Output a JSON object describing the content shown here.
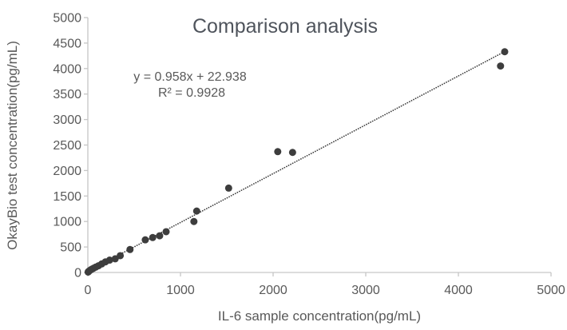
{
  "chart_data": {
    "type": "scatter",
    "title": "Comparison analysis",
    "xlabel": "IL-6 sample concentration(pg/mL)",
    "ylabel": "OkayBio test concentration(pg/mL)",
    "xlim": [
      0,
      5000
    ],
    "ylim": [
      0,
      5000
    ],
    "x_ticks": [
      0,
      1000,
      2000,
      3000,
      4000,
      5000
    ],
    "y_ticks": [
      0,
      500,
      1000,
      1500,
      2000,
      2500,
      3000,
      3500,
      4000,
      4500,
      5000
    ],
    "grid": false,
    "legend": "none",
    "points": [
      [
        3,
        8
      ],
      [
        8,
        18
      ],
      [
        15,
        30
      ],
      [
        25,
        45
      ],
      [
        40,
        62
      ],
      [
        60,
        82
      ],
      [
        85,
        105
      ],
      [
        115,
        132
      ],
      [
        150,
        168
      ],
      [
        190,
        208
      ],
      [
        235,
        242
      ],
      [
        295,
        268
      ],
      [
        350,
        330
      ],
      [
        455,
        450
      ],
      [
        620,
        640
      ],
      [
        700,
        685
      ],
      [
        775,
        720
      ],
      [
        845,
        800
      ],
      [
        1145,
        1000
      ],
      [
        1175,
        1205
      ],
      [
        1520,
        1655
      ],
      [
        2050,
        2370
      ],
      [
        2210,
        2355
      ],
      [
        4455,
        4050
      ],
      [
        4500,
        4330
      ]
    ],
    "trendline": {
      "type": "linear",
      "slope": 0.958,
      "intercept": 22.938,
      "r_squared": 0.9928,
      "equation": "y = 0.958x + 22.938",
      "r2_label": "R² = 0.9928",
      "style": "dotted",
      "x_start": 0,
      "x_end": 4520
    },
    "colors": {
      "marker": "#3D3D3D",
      "trendline": "#404040",
      "axis": "#C6C6C6",
      "tick_text": "#595959",
      "title_text": "#4F545C",
      "annotation_text": "#595959"
    },
    "marker_diameter_px": 9
  }
}
